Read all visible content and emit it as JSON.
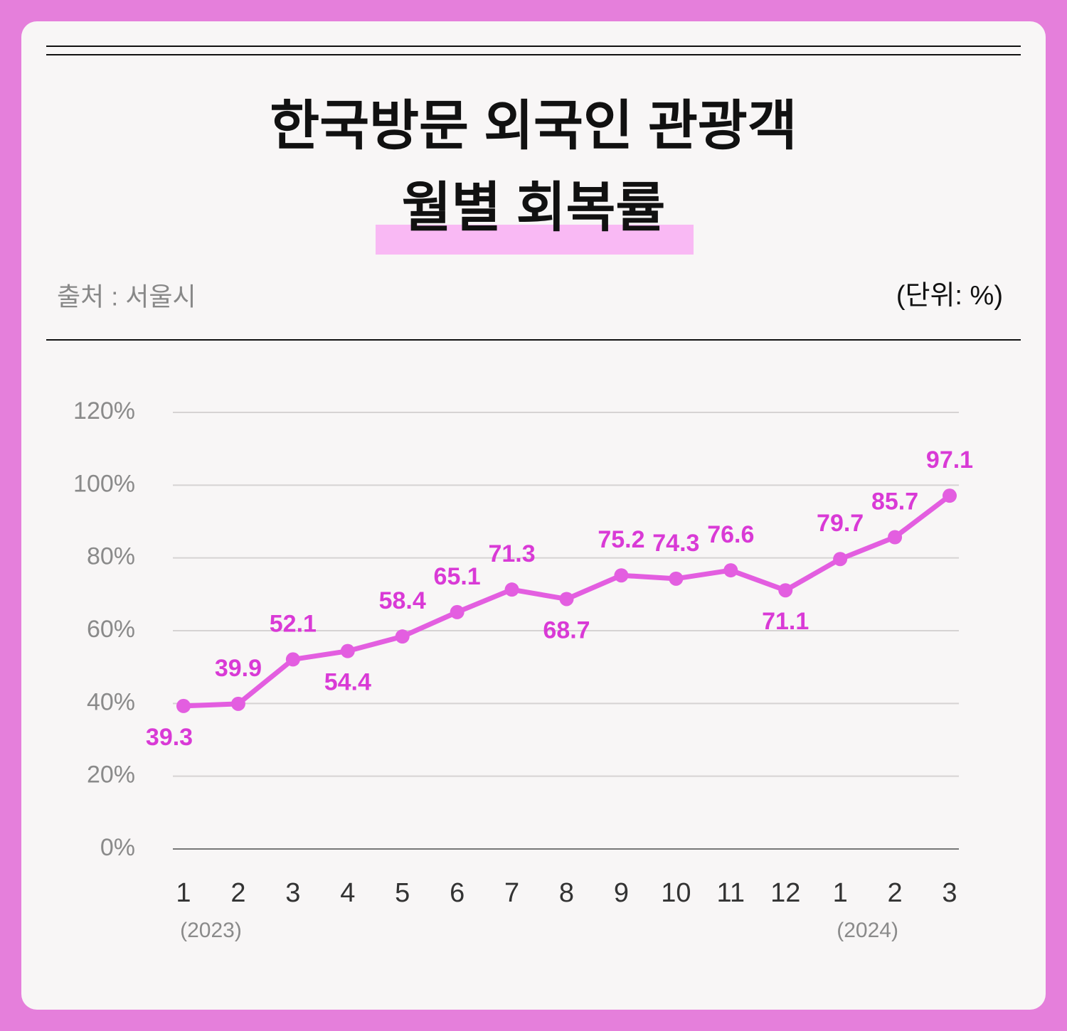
{
  "chart_data": {
    "type": "line",
    "title": [
      "한국방문 외국인 관광객",
      "월별 회복률"
    ],
    "source": "출처 : 서울시",
    "unit": "(단위: %)",
    "categories": [
      "1",
      "2",
      "3",
      "4",
      "5",
      "6",
      "7",
      "8",
      "9",
      "10",
      "11",
      "12",
      "1",
      "2",
      "3"
    ],
    "year_labels": [
      "(2023)",
      "(2024)"
    ],
    "values": [
      39.3,
      39.9,
      52.1,
      54.4,
      58.4,
      65.1,
      71.3,
      68.7,
      75.2,
      74.3,
      76.6,
      71.1,
      79.7,
      85.7,
      97.1
    ],
    "color": "#e35ee0",
    "label_color": "#d93ad6",
    "ylim": [
      0,
      120
    ],
    "yticks": [
      {
        "value": 0,
        "label": "0%"
      },
      {
        "value": 20,
        "label": "20%"
      },
      {
        "value": 40,
        "label": "40%"
      },
      {
        "value": 60,
        "label": "60%"
      },
      {
        "value": 80,
        "label": "80%"
      },
      {
        "value": 100,
        "label": "100%"
      },
      {
        "value": 120,
        "label": "120%"
      }
    ],
    "grid": true
  }
}
